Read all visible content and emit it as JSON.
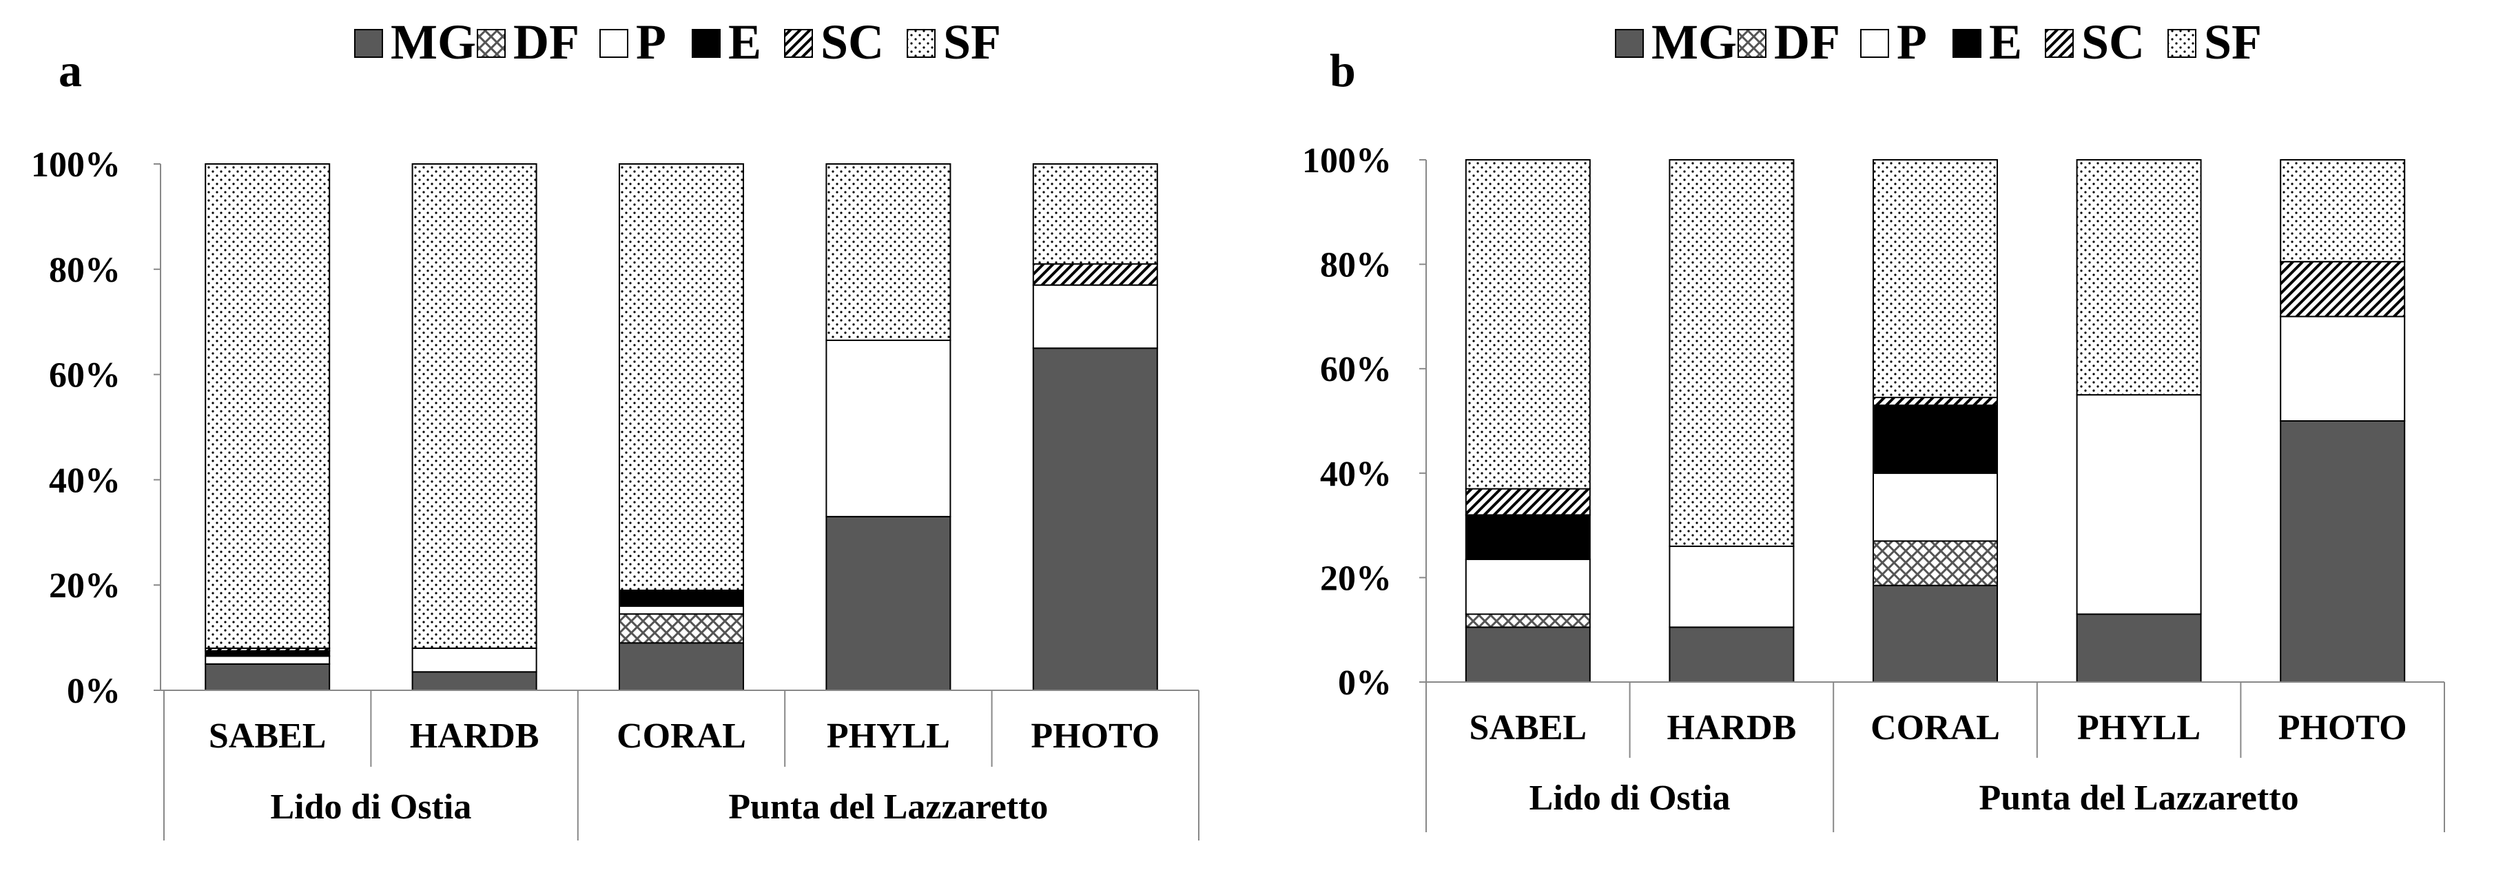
{
  "legend": [
    {
      "key": "MG",
      "label": "MG",
      "fill": "solid-dark",
      "color": "#595959"
    },
    {
      "key": "DF",
      "label": "DF",
      "fill": "crosshatch",
      "color": "#ffffff"
    },
    {
      "key": "P",
      "label": "P",
      "fill": "white",
      "color": "#ffffff"
    },
    {
      "key": "E",
      "label": "E",
      "fill": "solid-black",
      "color": "#000000"
    },
    {
      "key": "SC",
      "label": "SC",
      "fill": "diagonal",
      "color": "#ffffff"
    },
    {
      "key": "SF",
      "label": "SF",
      "fill": "dots",
      "color": "#ffffff"
    }
  ],
  "chart_data": [
    {
      "panel": "a",
      "type": "bar",
      "stacked": true,
      "percent": true,
      "ylim": [
        0,
        100
      ],
      "yticks": [
        "0%",
        "20%",
        "40%",
        "60%",
        "80%",
        "100%"
      ],
      "categories": [
        "SABEL",
        "HARDB",
        "CORAL",
        "PHYLL",
        "PHOTO"
      ],
      "groups": [
        {
          "label": "Lido di Ostia",
          "categories": [
            "SABEL",
            "HARDB"
          ]
        },
        {
          "label": "Punta del Lazzaretto",
          "categories": [
            "CORAL",
            "PHYLL",
            "PHOTO"
          ]
        }
      ],
      "series": [
        {
          "name": "MG",
          "values": [
            5,
            3.5,
            9,
            33,
            65
          ]
        },
        {
          "name": "DF",
          "values": [
            0,
            0,
            5.5,
            0,
            0
          ]
        },
        {
          "name": "P",
          "values": [
            1.5,
            4.5,
            1.5,
            33.5,
            12
          ]
        },
        {
          "name": "E",
          "values": [
            1,
            0,
            3,
            0,
            0
          ]
        },
        {
          "name": "SC",
          "values": [
            0.5,
            0,
            0,
            0,
            4
          ]
        },
        {
          "name": "SF",
          "values": [
            92,
            92,
            81,
            33.5,
            19
          ]
        }
      ]
    },
    {
      "panel": "b",
      "type": "bar",
      "stacked": true,
      "percent": true,
      "ylim": [
        0,
        100
      ],
      "yticks": [
        "0%",
        "20%",
        "40%",
        "60%",
        "80%",
        "100%"
      ],
      "categories": [
        "SABEL",
        "HARDB",
        "CORAL",
        "PHYLL",
        "PHOTO"
      ],
      "groups": [
        {
          "label": "Lido di Ostia",
          "categories": [
            "SABEL",
            "HARDB"
          ]
        },
        {
          "label": "Punta del Lazzaretto",
          "categories": [
            "CORAL",
            "PHYLL",
            "PHOTO"
          ]
        }
      ],
      "series": [
        {
          "name": "MG",
          "values": [
            10.5,
            10.5,
            18.5,
            13,
            50
          ]
        },
        {
          "name": "DF",
          "values": [
            2.5,
            0,
            8.5,
            0,
            0
          ]
        },
        {
          "name": "P",
          "values": [
            10.5,
            15.5,
            13,
            42,
            20
          ]
        },
        {
          "name": "E",
          "values": [
            8.5,
            0,
            13,
            0,
            0
          ]
        },
        {
          "name": "SC",
          "values": [
            5,
            0,
            1.5,
            0,
            10.5
          ]
        },
        {
          "name": "SF",
          "values": [
            63,
            74,
            45.5,
            45,
            19.5
          ]
        }
      ]
    }
  ]
}
